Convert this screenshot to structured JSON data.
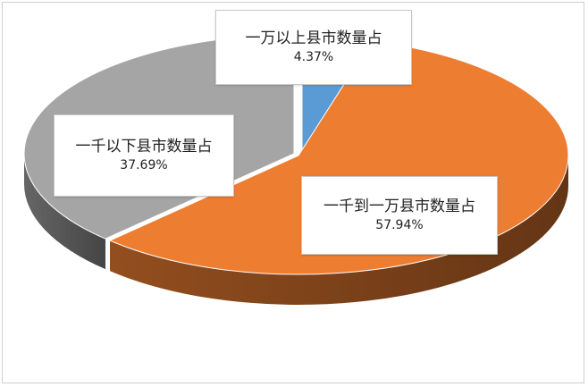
{
  "chart_data": {
    "type": "pie",
    "title": "",
    "style": "3d-exploded-pie",
    "slices": [
      {
        "label": "一万以上县市数量占",
        "value": 4.37,
        "display": "4.37%",
        "color": "#5b9bd5"
      },
      {
        "label": "一千到一万县市数量占",
        "value": 57.94,
        "display": "57.94%",
        "color": "#ed7d31"
      },
      {
        "label": "一千以下县市数量占",
        "value": 37.69,
        "display": "37.69%",
        "color": "#a5a5a5"
      }
    ]
  }
}
